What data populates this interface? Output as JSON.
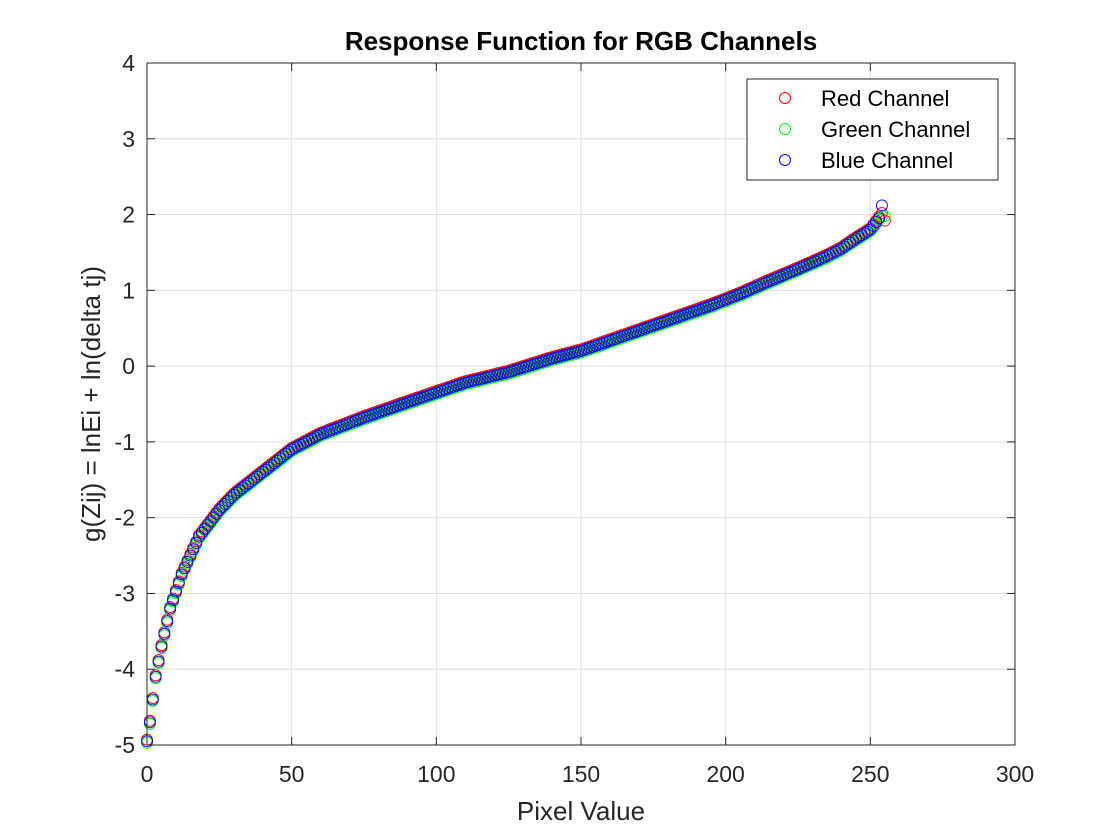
{
  "chart_data": {
    "type": "scatter",
    "title": "Response Function for RGB Channels",
    "xlabel": "Pixel Value",
    "ylabel": "g(Zij) = lnEi + ln(delta tj)",
    "xlim": [
      0,
      300
    ],
    "ylim": [
      -5,
      4
    ],
    "xticks": [
      "0",
      "50",
      "100",
      "150",
      "200",
      "250",
      "300"
    ],
    "yticks": [
      "-5",
      "-4",
      "-3",
      "-2",
      "-1",
      "0",
      "1",
      "2",
      "3",
      "4"
    ],
    "grid": true,
    "legend_position": "top-right",
    "marker": "open-circle",
    "curve_anchors": {
      "x": [
        0,
        1,
        2,
        3,
        5,
        8,
        12,
        18,
        25,
        30,
        40,
        50,
        60,
        75,
        90,
        100,
        110,
        125,
        140,
        150,
        165,
        180,
        195,
        205,
        215,
        225,
        235,
        240,
        245,
        250,
        252,
        254
      ],
      "y": [
        -4.95,
        -4.7,
        -4.4,
        -4.1,
        -3.7,
        -3.2,
        -2.75,
        -2.25,
        -1.9,
        -1.7,
        -1.4,
        -1.1,
        -0.9,
        -0.68,
        -0.48,
        -0.35,
        -0.22,
        -0.08,
        0.1,
        0.2,
        0.4,
        0.6,
        0.8,
        0.95,
        1.12,
        1.28,
        1.45,
        1.55,
        1.68,
        1.8,
        1.9,
        2.0
      ]
    },
    "series": [
      {
        "name": "Red Channel",
        "color": "#ff0000",
        "x_range": [
          0,
          255
        ],
        "offset": 0.02,
        "end_value": 1.92
      },
      {
        "name": "Green Channel",
        "color": "#00ff00",
        "x_range": [
          0,
          255
        ],
        "offset": -0.02,
        "end_value": 1.98
      },
      {
        "name": "Blue Channel",
        "color": "#0000ff",
        "x_range": [
          0,
          254
        ],
        "offset": 0.0,
        "end_value": 2.12
      }
    ]
  }
}
